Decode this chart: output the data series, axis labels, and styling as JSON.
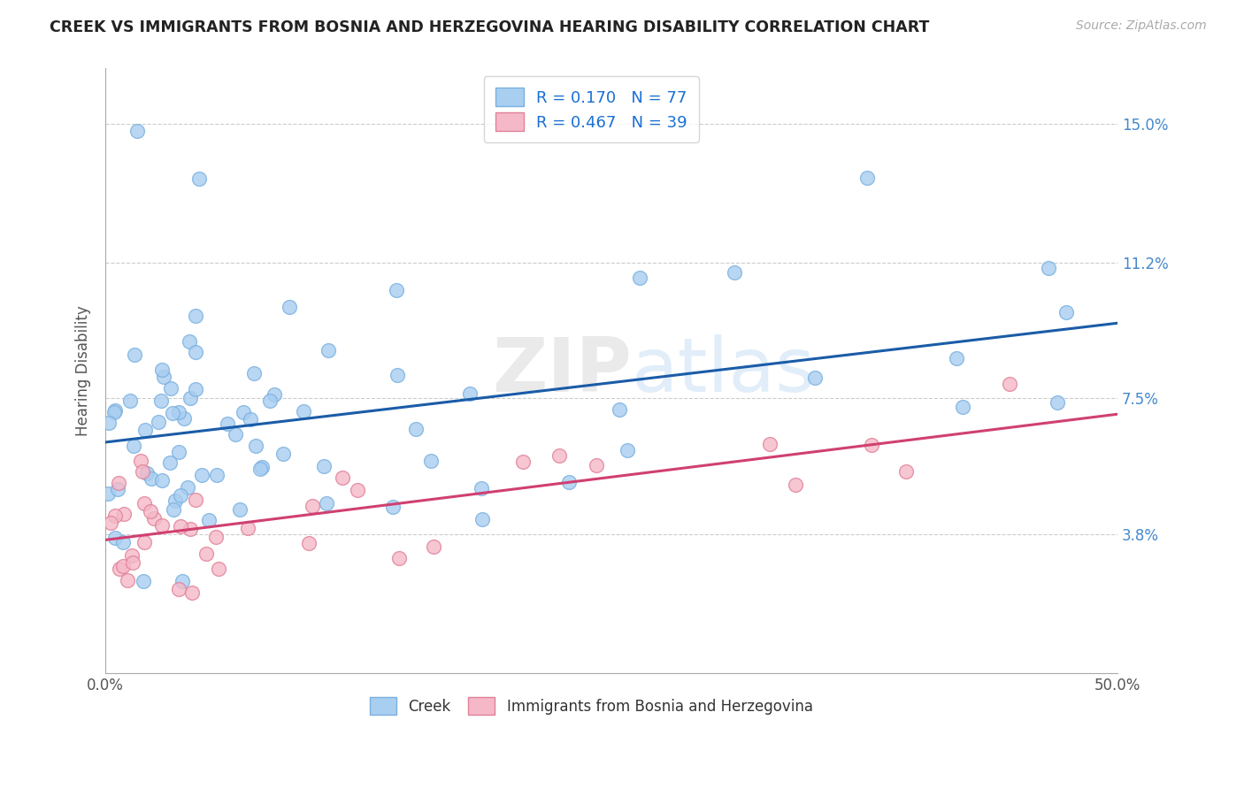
{
  "title": "CREEK VS IMMIGRANTS FROM BOSNIA AND HERZEGOVINA HEARING DISABILITY CORRELATION CHART",
  "source": "Source: ZipAtlas.com",
  "ylabel": "Hearing Disability",
  "xlim": [
    0.0,
    0.5
  ],
  "ylim": [
    0.0,
    0.165
  ],
  "ytick_vals": [
    0.038,
    0.075,
    0.112,
    0.15
  ],
  "ytick_labels": [
    "3.8%",
    "7.5%",
    "11.2%",
    "15.0%"
  ],
  "grid_color": "#cccccc",
  "background_color": "#ffffff",
  "creek_color": "#a8cef0",
  "creek_edge_color": "#7ab0e0",
  "bosnia_color": "#f5b8c8",
  "bosnia_edge_color": "#e08098",
  "creek_R": 0.17,
  "creek_N": 77,
  "bosnia_R": 0.467,
  "bosnia_N": 39,
  "creek_line_color": "#1a5ca8",
  "bosnia_line_color": "#d04070",
  "watermark_zip": "ZIP",
  "watermark_atlas": "atlas",
  "legend1_label": "R = 0.170   N = 77",
  "legend2_label": "R = 0.467   N = 39",
  "bottom_label1": "Creek",
  "bottom_label2": "Immigrants from Bosnia and Herzegovina"
}
